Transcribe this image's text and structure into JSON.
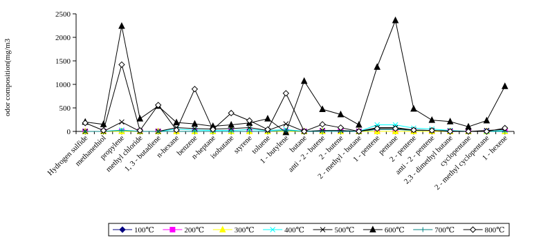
{
  "chart_data": {
    "type": "line",
    "title": "",
    "xlabel": "",
    "ylabel": "odor composition(mg/m3",
    "ylim": [
      0,
      2500
    ],
    "yticks": [
      0,
      500,
      1000,
      1500,
      2000,
      2500
    ],
    "grid": false,
    "legend_position": "bottom",
    "categories": [
      "Hydrogen sulfide",
      "methanethiol",
      "propylene",
      "methyl chloride",
      "1, 3 - butadiene",
      "n-hexane",
      "benzene",
      "n-heptane",
      "isobutane",
      "styrene",
      "toluene",
      "1 - butylene",
      "butane",
      "anti - 2 - butene",
      "2 - butene",
      "2 - methyl - butane",
      "1 - pentene",
      "pentane",
      "2 - pentene",
      "anti - 2 - pentene",
      "2,3 - dimethyl butane",
      "cyclopentane",
      "2 - methyl cyclopentane",
      "1 - hexene"
    ],
    "series": [
      {
        "name": "100℃",
        "color": "#000080",
        "marker": "diamond-filled",
        "values": [
          0,
          0,
          0,
          0,
          0,
          0,
          0,
          0,
          0,
          0,
          0,
          0,
          0,
          0,
          0,
          0,
          0,
          0,
          0,
          0,
          0,
          0,
          0,
          0
        ]
      },
      {
        "name": "200℃",
        "color": "#ff00ff",
        "marker": "square-filled",
        "values": [
          0,
          0,
          0,
          0,
          0,
          0,
          0,
          0,
          0,
          0,
          0,
          0,
          0,
          0,
          0,
          0,
          0,
          0,
          0,
          0,
          0,
          0,
          0,
          0
        ]
      },
      {
        "name": "300℃",
        "color": "#ffff00",
        "marker": "triangle-filled",
        "values": [
          0,
          0,
          0,
          0,
          0,
          0,
          0,
          0,
          0,
          0,
          0,
          0,
          0,
          0,
          0,
          0,
          0,
          0,
          0,
          0,
          0,
          0,
          0,
          0
        ]
      },
      {
        "name": "400℃",
        "color": "#00ffff",
        "marker": "x",
        "values": [
          0,
          0,
          30,
          0,
          0,
          50,
          30,
          20,
          20,
          40,
          20,
          40,
          0,
          20,
          20,
          0,
          140,
          140,
          70,
          50,
          20,
          0,
          0,
          20
        ]
      },
      {
        "name": "500℃",
        "color": "#000000",
        "marker": "x",
        "values": [
          0,
          0,
          200,
          0,
          0,
          80,
          60,
          50,
          60,
          80,
          20,
          160,
          0,
          20,
          20,
          0,
          80,
          80,
          30,
          20,
          10,
          0,
          20,
          40
        ]
      },
      {
        "name": "600℃",
        "color": "#000000",
        "marker": "triangle-filled",
        "values": [
          200,
          150,
          2240,
          270,
          540,
          190,
          160,
          110,
          140,
          180,
          270,
          -20,
          1070,
          470,
          360,
          140,
          1370,
          2360,
          480,
          240,
          210,
          100,
          230,
          960
        ]
      },
      {
        "name": "700℃",
        "color": "#008080",
        "marker": "plus",
        "values": [
          0,
          0,
          20,
          0,
          0,
          0,
          0,
          0,
          0,
          0,
          0,
          20,
          0,
          0,
          0,
          0,
          40,
          40,
          20,
          20,
          0,
          0,
          0,
          0
        ]
      },
      {
        "name": "800℃",
        "color": "#000000",
        "marker": "diamond-open",
        "values": [
          180,
          20,
          1420,
          20,
          560,
          30,
          900,
          40,
          390,
          230,
          40,
          810,
          0,
          150,
          80,
          0,
          60,
          60,
          30,
          20,
          0,
          0,
          0,
          70
        ]
      }
    ]
  }
}
